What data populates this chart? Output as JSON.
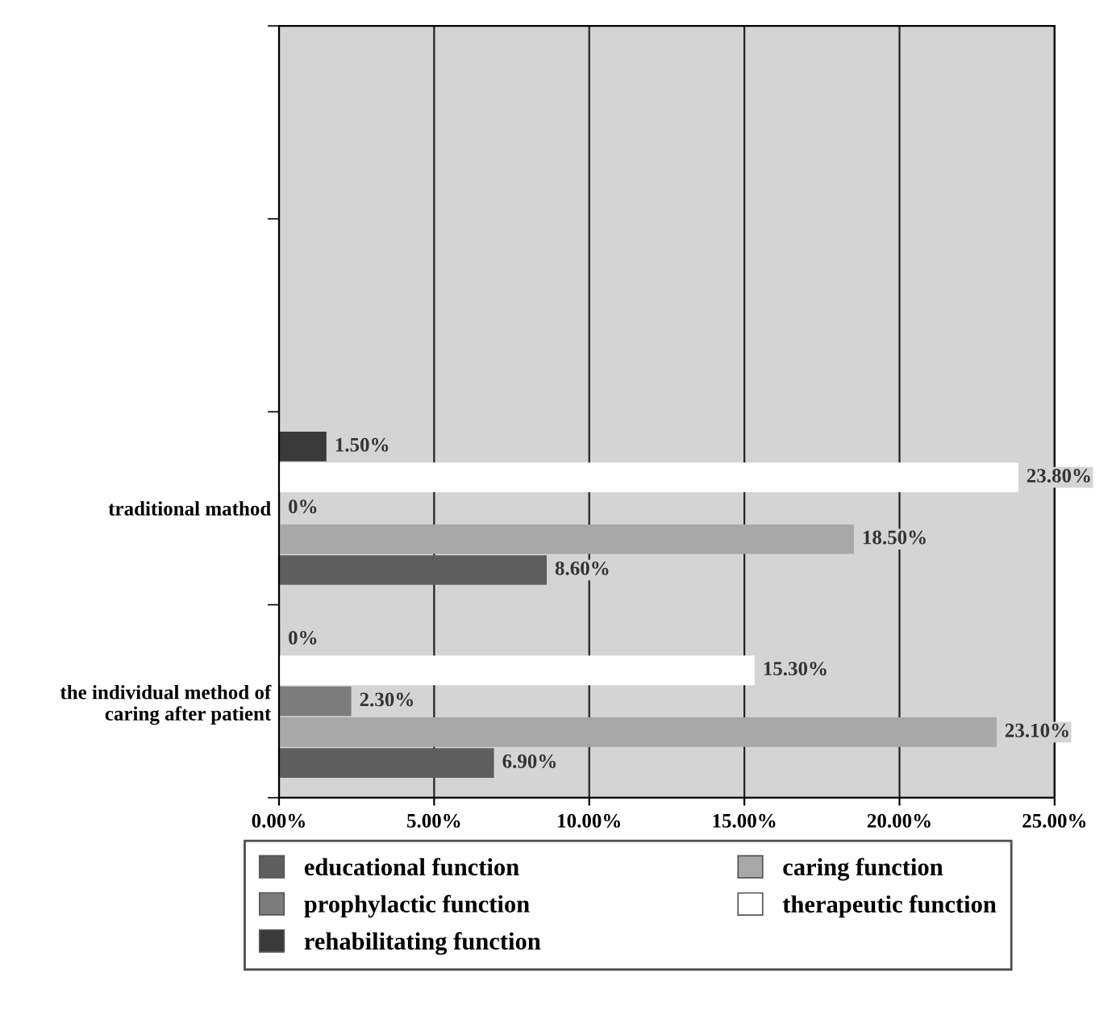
{
  "chart_data": {
    "type": "bar",
    "orientation": "horizontal",
    "categories": [
      null,
      null,
      "traditional mathod",
      "the individual method of\ncaring after patient"
    ],
    "series": [
      {
        "name": "educational function",
        "color": "#5e5e5e",
        "values": [
          null,
          null,
          8.6,
          6.9
        ],
        "value_labels": [
          null,
          null,
          "8.60%",
          "6.90%"
        ]
      },
      {
        "name": "caring function",
        "color": "#a8a8a8",
        "values": [
          null,
          null,
          18.5,
          23.1
        ],
        "value_labels": [
          null,
          null,
          "18.50%",
          "23.10%"
        ]
      },
      {
        "name": "prophylactic function",
        "color": "#7c7c7c",
        "values": [
          null,
          null,
          0,
          2.3
        ],
        "value_labels": [
          null,
          null,
          "0%",
          "2.30%"
        ]
      },
      {
        "name": "therapeutic function",
        "color": "#ffffff",
        "values": [
          null,
          null,
          23.8,
          15.3
        ],
        "value_labels": [
          null,
          null,
          "23.80%",
          "15.30%"
        ]
      },
      {
        "name": "rehabilitating function",
        "color": "#3a3a3a",
        "values": [
          null,
          null,
          1.5,
          0
        ],
        "value_labels": [
          null,
          null,
          "1.50%",
          "0%"
        ]
      }
    ],
    "xlim": [
      0,
      25
    ],
    "xticks": [
      {
        "value": 0,
        "label": "0.00%"
      },
      {
        "value": 5,
        "label": "5.00%"
      },
      {
        "value": 10,
        "label": "10.00%"
      },
      {
        "value": 15,
        "label": "15.00%"
      },
      {
        "value": 20,
        "label": "20.00%"
      },
      {
        "value": 25,
        "label": "25.00%"
      }
    ],
    "grid": "x",
    "legend": "bottom"
  }
}
